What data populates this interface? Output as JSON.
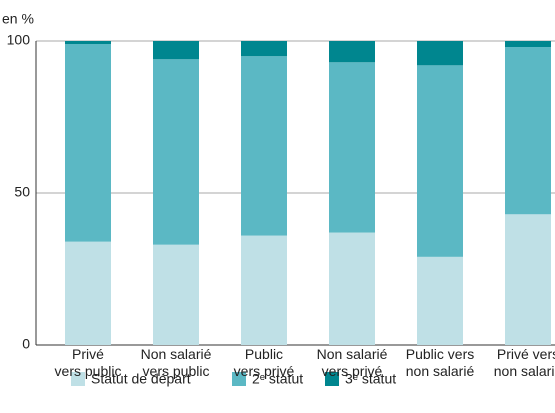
{
  "chart_data": {
    "type": "stacked_bar",
    "y_axis_label": "en %",
    "categories": [
      "Privé\nvers public",
      "Non salarié\nvers public",
      "Public\nvers privé",
      "Non salarié\nvers privé",
      "Public vers\nnon salarié",
      "Privé vers\nnon salarié"
    ],
    "series": [
      {
        "name": "Statut de départ",
        "color": "#bfe0e6",
        "values": [
          34,
          33,
          36,
          37,
          29,
          43
        ]
      },
      {
        "name": "2ᵉ statut",
        "color": "#5bb8c4",
        "values": [
          65,
          61,
          59,
          56,
          63,
          55
        ]
      },
      {
        "name": "3ᵉ statut",
        "color": "#00868f",
        "values": [
          1,
          6,
          5,
          7,
          8,
          2
        ]
      }
    ],
    "ylim": [
      0,
      100
    ],
    "yticks": [
      0,
      50,
      100
    ],
    "grid": true
  }
}
